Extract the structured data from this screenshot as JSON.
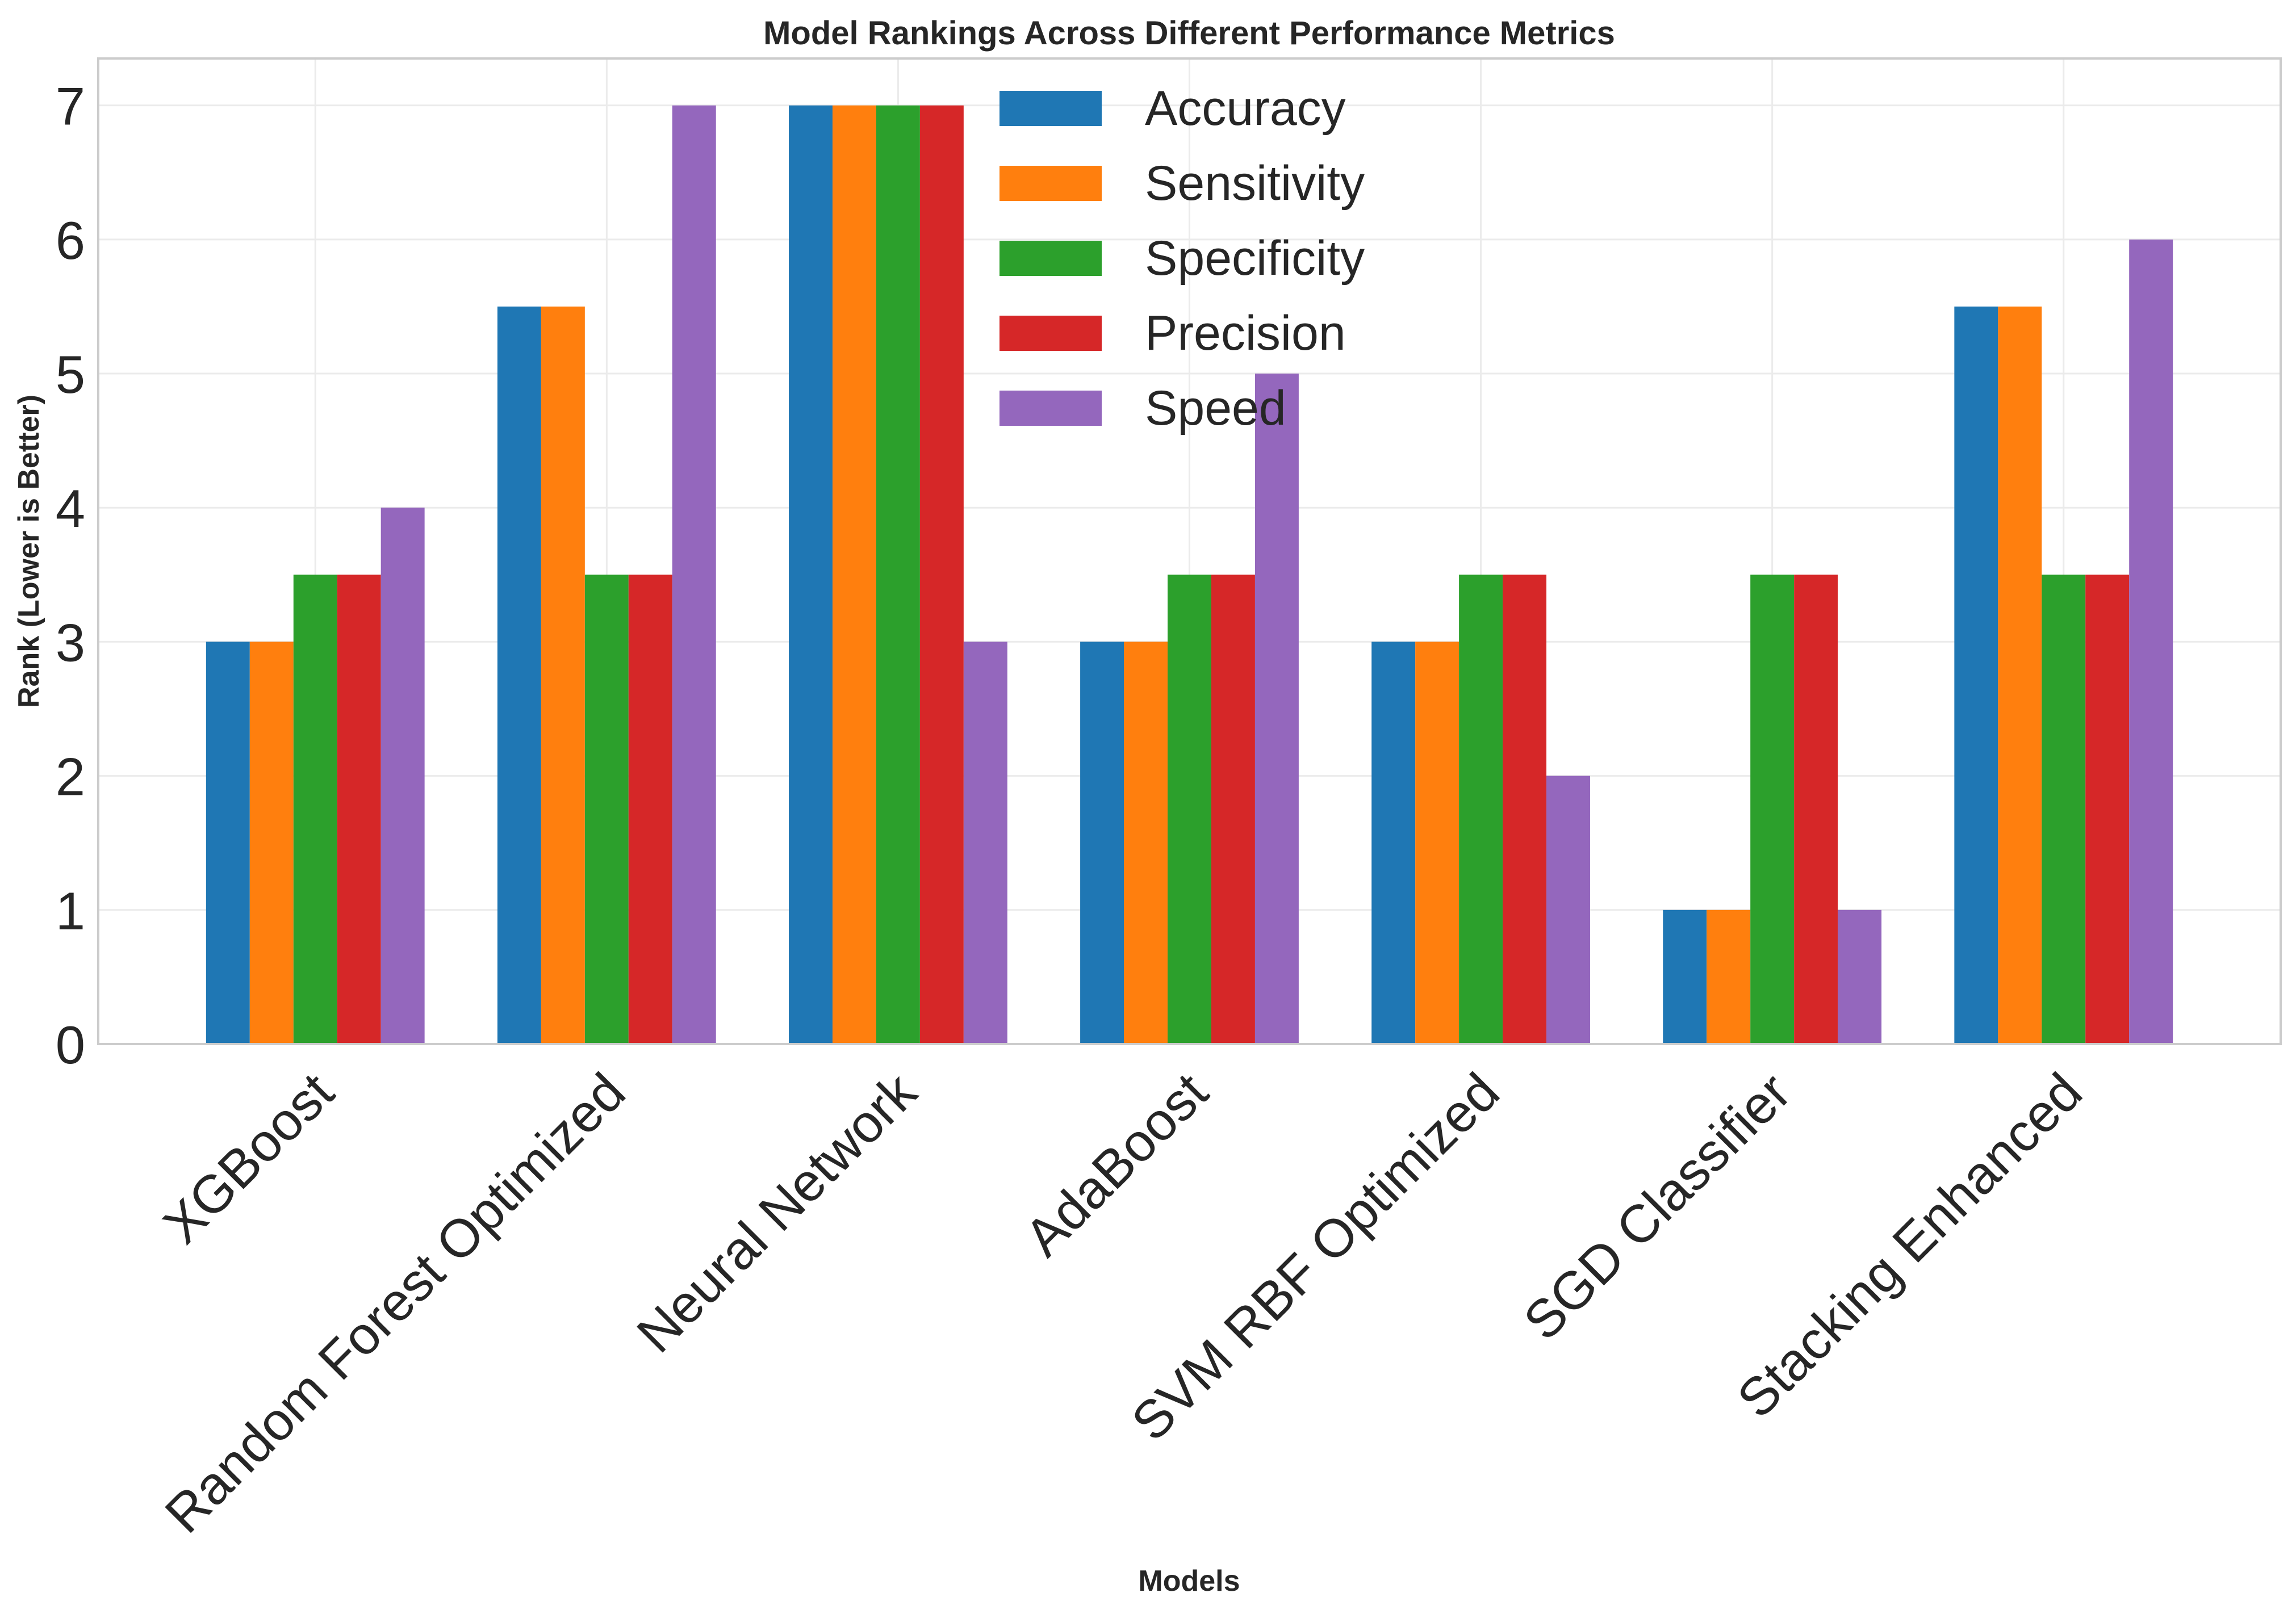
{
  "chart_data": {
    "type": "bar",
    "title": "Model Rankings Across Different Performance Metrics",
    "xlabel": "Models",
    "ylabel": "Rank (Lower is Better)",
    "categories": [
      "XGBoost",
      "Random Forest Optimized",
      "Neural Network",
      "AdaBoost",
      "SVM RBF Optimized",
      "SGD Classifier",
      "Stacking Enhanced"
    ],
    "series": [
      {
        "name": "Accuracy",
        "color": "#1f77b4",
        "values": [
          3,
          5.5,
          7,
          3,
          3,
          1,
          5.5
        ]
      },
      {
        "name": "Sensitivity",
        "color": "#ff7f0e",
        "values": [
          3,
          5.5,
          7,
          3,
          3,
          1,
          5.5
        ]
      },
      {
        "name": "Specificity",
        "color": "#2ca02c",
        "values": [
          3.5,
          3.5,
          7,
          3.5,
          3.5,
          3.5,
          3.5
        ]
      },
      {
        "name": "Precision",
        "color": "#d62728",
        "values": [
          3.5,
          3.5,
          7,
          3.5,
          3.5,
          3.5,
          3.5
        ]
      },
      {
        "name": "Speed",
        "color": "#9467bd",
        "values": [
          4,
          7,
          3,
          5,
          2,
          1,
          6
        ]
      }
    ],
    "ylim": [
      0,
      7.35
    ],
    "yticks": [
      0,
      1,
      2,
      3,
      4,
      5,
      6,
      7
    ],
    "grid": true,
    "legend_position": "upper-center"
  }
}
